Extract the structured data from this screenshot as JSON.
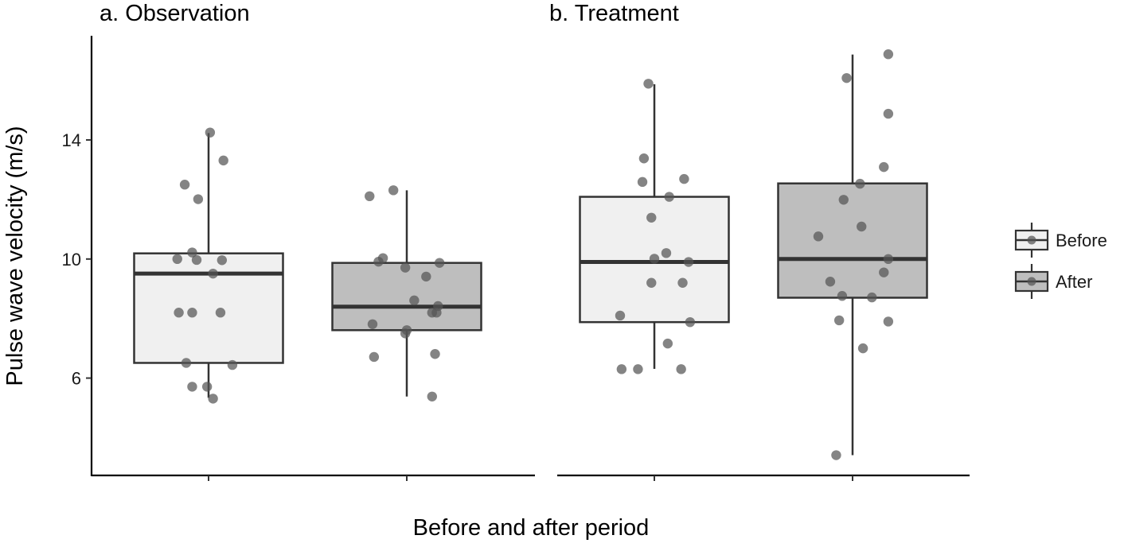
{
  "chart_data": {
    "type": "boxplot",
    "xlabel": "Before and after period",
    "ylabel": "Pulse wave velocity (m/s)",
    "ylim": [
      2.73,
      17.5
    ],
    "yticks": [
      6,
      10,
      14
    ],
    "ytick_labels": [
      "6",
      "10",
      "14"
    ],
    "grid": false,
    "legend": {
      "placement": "right",
      "entries": [
        "Before",
        "After"
      ]
    },
    "colors": {
      "Before": "#f0f0f0",
      "After": "#bebebe",
      "points": "#555555",
      "lines": "#333333"
    },
    "panels": [
      {
        "title": "a.  Observation",
        "groups": [
          {
            "name": "Before",
            "box": {
              "whisker_low": 5.34,
              "q1": 6.51,
              "median": 9.51,
              "q3": 10.19,
              "whisker_high": 14.23
            },
            "points": [
              [
                14.25,
                0.01
              ],
              [
                13.31,
                0.1
              ],
              [
                12.5,
                -0.16
              ],
              [
                12.01,
                -0.07
              ],
              [
                10.22,
                -0.11
              ],
              [
                10.0,
                -0.21
              ],
              [
                9.97,
                -0.08
              ],
              [
                9.96,
                0.09
              ],
              [
                9.51,
                0.03
              ],
              [
                8.2,
                -0.2
              ],
              [
                8.2,
                -0.11
              ],
              [
                8.2,
                0.08
              ],
              [
                6.51,
                -0.15
              ],
              [
                6.44,
                0.16
              ],
              [
                5.71,
                -0.11
              ],
              [
                5.71,
                -0.01
              ],
              [
                5.31,
                0.03
              ]
            ]
          },
          {
            "name": "After",
            "box": {
              "whisker_low": 5.38,
              "q1": 7.61,
              "median": 8.4,
              "q3": 9.87,
              "whisker_high": 12.31
            },
            "points": [
              [
                12.11,
                -0.25
              ],
              [
                12.31,
                -0.09
              ],
              [
                10.03,
                -0.16
              ],
              [
                9.91,
                -0.19
              ],
              [
                9.71,
                -0.01
              ],
              [
                9.87,
                0.22
              ],
              [
                9.41,
                0.13
              ],
              [
                8.61,
                0.05
              ],
              [
                8.42,
                0.21
              ],
              [
                8.2,
                0.17
              ],
              [
                8.2,
                0.2
              ],
              [
                7.81,
                -0.23
              ],
              [
                7.61,
                0.0
              ],
              [
                7.5,
                -0.01
              ],
              [
                6.71,
                -0.22
              ],
              [
                6.81,
                0.19
              ],
              [
                5.38,
                0.17
              ]
            ]
          }
        ]
      },
      {
        "title": "b.  Treatment",
        "groups": [
          {
            "name": "Before",
            "box": {
              "whisker_low": 6.31,
              "q1": 7.88,
              "median": 9.9,
              "q3": 12.09,
              "whisker_high": 15.87
            },
            "points": [
              [
                15.89,
                -0.04
              ],
              [
                13.38,
                -0.07
              ],
              [
                12.59,
                -0.08
              ],
              [
                12.69,
                0.2
              ],
              [
                12.09,
                0.1
              ],
              [
                11.39,
                -0.02
              ],
              [
                10.2,
                0.08
              ],
              [
                10.01,
                0.0
              ],
              [
                9.9,
                0.23
              ],
              [
                9.2,
                -0.02
              ],
              [
                9.2,
                0.19
              ],
              [
                8.1,
                -0.23
              ],
              [
                7.88,
                0.24
              ],
              [
                7.16,
                0.09
              ],
              [
                6.3,
                -0.22
              ],
              [
                6.3,
                -0.11
              ],
              [
                6.3,
                0.18
              ]
            ]
          },
          {
            "name": "After",
            "box": {
              "whisker_low": 3.41,
              "q1": 8.7,
              "median": 10.0,
              "q3": 12.54,
              "whisker_high": 16.87
            },
            "points": [
              [
                16.88,
                0.24
              ],
              [
                16.08,
                -0.04
              ],
              [
                14.88,
                0.24
              ],
              [
                13.09,
                0.21
              ],
              [
                12.53,
                0.05
              ],
              [
                11.99,
                -0.06
              ],
              [
                11.09,
                0.06
              ],
              [
                10.76,
                -0.23
              ],
              [
                10.0,
                0.24
              ],
              [
                9.55,
                0.21
              ],
              [
                9.24,
                -0.15
              ],
              [
                8.76,
                -0.07
              ],
              [
                8.71,
                0.13
              ],
              [
                7.94,
                -0.09
              ],
              [
                7.9,
                0.24
              ],
              [
                7.0,
                0.07
              ],
              [
                3.41,
                -0.11
              ]
            ]
          }
        ]
      }
    ]
  }
}
